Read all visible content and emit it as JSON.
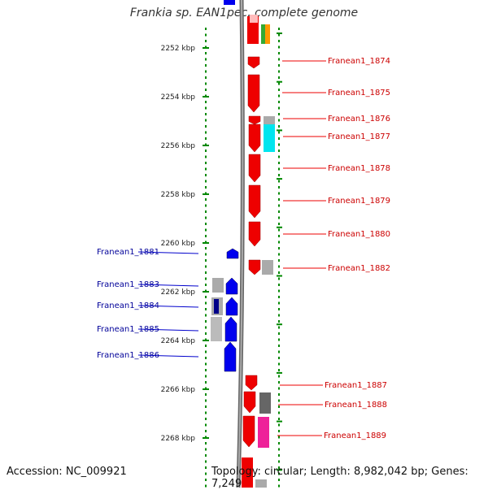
{
  "title": "Frankia sp. EAN1pec, complete genome",
  "footer": {
    "accession": "Accession: NC_009921",
    "summary": "Topology: circular; Length: 8,982,042 bp; Genes: 7,249"
  },
  "colors": {
    "forward": "#ee0000",
    "reverse": "#0000ee",
    "backbone": "#888888",
    "ruler": "#008800"
  },
  "ticks": [
    {
      "kbp": 2252,
      "label": "2252 kbp"
    },
    {
      "kbp": 2254,
      "label": "2254 kbp"
    },
    {
      "kbp": 2256,
      "label": "2256 kbp"
    },
    {
      "kbp": 2258,
      "label": "2258 kbp"
    },
    {
      "kbp": 2260,
      "label": "2260 kbp"
    },
    {
      "kbp": 2262,
      "label": "2262 kbp"
    },
    {
      "kbp": 2264,
      "label": "2264 kbp"
    },
    {
      "kbp": 2266,
      "label": "2266 kbp"
    },
    {
      "kbp": 2268,
      "label": "2268 kbp"
    }
  ],
  "genes": [
    {
      "name": "Franean1_1874",
      "strand": "+"
    },
    {
      "name": "Franean1_1875",
      "strand": "+"
    },
    {
      "name": "Franean1_1876",
      "strand": "+"
    },
    {
      "name": "Franean1_1877",
      "strand": "+"
    },
    {
      "name": "Franean1_1878",
      "strand": "+"
    },
    {
      "name": "Franean1_1879",
      "strand": "+"
    },
    {
      "name": "Franean1_1880",
      "strand": "+"
    },
    {
      "name": "Franean1_1881",
      "strand": "-"
    },
    {
      "name": "Franean1_1882",
      "strand": "+"
    },
    {
      "name": "Franean1_1883",
      "strand": "-"
    },
    {
      "name": "Franean1_1884",
      "strand": "-"
    },
    {
      "name": "Franean1_1885",
      "strand": "-"
    },
    {
      "name": "Franean1_1886",
      "strand": "-"
    },
    {
      "name": "Franean1_1887",
      "strand": "+"
    },
    {
      "name": "Franean1_1888",
      "strand": "+"
    },
    {
      "name": "Franean1_1889",
      "strand": "+"
    }
  ]
}
